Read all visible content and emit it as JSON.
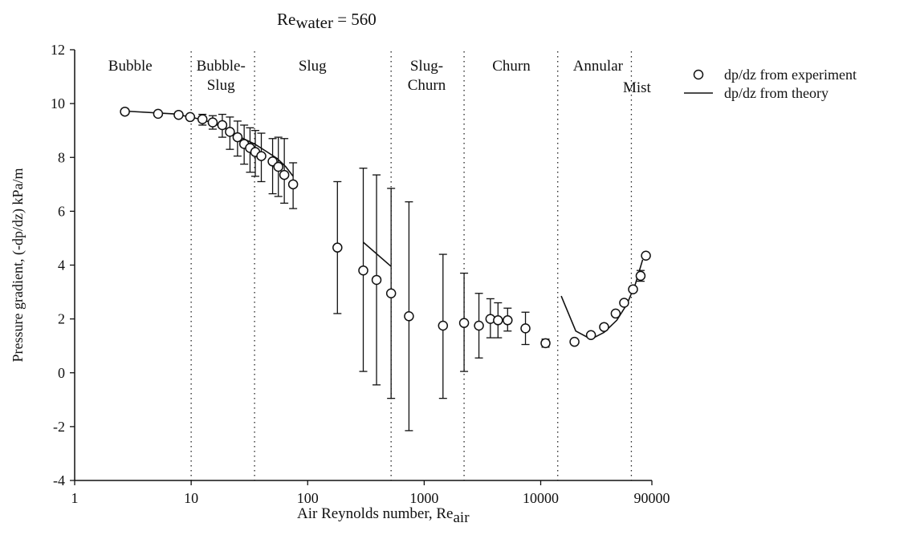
{
  "chart_data": {
    "type": "scatter",
    "title": {
      "main": "Re",
      "sub": "water",
      "suffix": " = 560"
    },
    "xlabel": {
      "main": "Air Reynolds number, Re",
      "sub": "air"
    },
    "ylabel": "Pressure gradient, (-dp/dz) kPa/m",
    "x_scale": "log",
    "xlim": [
      1,
      90000
    ],
    "ylim": [
      -4,
      12
    ],
    "x_ticks": [
      {
        "value": 1,
        "label": "1"
      },
      {
        "value": 10,
        "label": "10"
      },
      {
        "value": 100,
        "label": "100"
      },
      {
        "value": 1000,
        "label": "1000"
      },
      {
        "value": 10000,
        "label": "10000"
      },
      {
        "value": 90000,
        "label": "90000"
      }
    ],
    "y_ticks": [
      {
        "value": -4,
        "label": "-4"
      },
      {
        "value": -2,
        "label": "-2"
      },
      {
        "value": 0,
        "label": "0"
      },
      {
        "value": 2,
        "label": "2"
      },
      {
        "value": 4,
        "label": "4"
      },
      {
        "value": 6,
        "label": "6"
      },
      {
        "value": 8,
        "label": "8"
      },
      {
        "value": 10,
        "label": "10"
      },
      {
        "value": 12,
        "label": "12"
      }
    ],
    "grid": false,
    "legend_position": "right",
    "regime_boundaries": [
      10,
      35,
      520,
      2200,
      14000,
      60000
    ],
    "regimes": [
      {
        "lines": [
          "Bubble"
        ],
        "x": 3
      },
      {
        "lines": [
          "Bubble-",
          "Slug"
        ],
        "x": 18
      },
      {
        "lines": [
          "Slug"
        ],
        "x": 110
      },
      {
        "lines": [
          "Slug-",
          "Churn"
        ],
        "x": 1050
      },
      {
        "lines": [
          "Churn"
        ],
        "x": 5600
      },
      {
        "lines": [
          "Annular"
        ],
        "x": 31000
      }
    ],
    "regime_extra": {
      "label": "Mist",
      "x": 67000
    },
    "series": [
      {
        "name": "dp/dz from experiment",
        "style": "open-circle",
        "x": [
          2.7,
          5.2,
          7.8,
          9.8,
          12.5,
          15.3,
          18.5,
          21.5,
          25,
          28.5,
          32,
          35.5,
          40,
          50,
          56,
          63,
          75,
          180,
          300,
          390,
          520,
          740,
          1450,
          2200,
          2950,
          3700,
          4300,
          5200,
          7400,
          11000,
          19500,
          27000,
          35000,
          44000,
          52000,
          62000,
          72000
        ],
        "y": [
          9.7,
          9.62,
          9.58,
          9.5,
          9.42,
          9.3,
          9.2,
          8.95,
          8.75,
          8.5,
          8.35,
          8.2,
          8.05,
          7.85,
          7.65,
          7.35,
          7.0,
          4.65,
          3.8,
          3.45,
          2.95,
          2.1,
          1.75,
          1.85,
          1.75,
          2.0,
          1.95,
          1.95,
          1.65,
          1.1,
          1.15,
          1.4,
          1.7,
          2.2,
          2.6,
          3.1,
          3.6
        ]
      },
      {
        "name": "dp/dz from theory",
        "style": "line",
        "segments": [
          {
            "x": [
              2.7,
              7,
              10,
              15,
              20,
              28,
              35,
              45,
              55,
              65,
              75
            ],
            "y": [
              9.72,
              9.62,
              9.5,
              9.3,
              9.05,
              8.7,
              8.5,
              8.2,
              7.95,
              7.65,
              7.3
            ]
          },
          {
            "x": [
              300,
              520
            ],
            "y": [
              4.85,
              3.95
            ]
          },
          {
            "x": [
              15000,
              20000,
              27000,
              35000,
              45000,
              55000,
              65000,
              75000
            ],
            "y": [
              2.85,
              1.55,
              1.25,
              1.5,
              1.95,
              2.55,
              3.3,
              4.2
            ]
          }
        ]
      }
    ],
    "error_bars": [
      {
        "x": 12.5,
        "low": 9.2,
        "high": 9.6
      },
      {
        "x": 15.3,
        "low": 9.05,
        "high": 9.55
      },
      {
        "x": 18.5,
        "low": 8.75,
        "high": 9.6
      },
      {
        "x": 21.5,
        "low": 8.3,
        "high": 9.5
      },
      {
        "x": 25,
        "low": 8.05,
        "high": 9.35
      },
      {
        "x": 28.5,
        "low": 7.75,
        "high": 9.2
      },
      {
        "x": 32,
        "low": 7.45,
        "high": 9.1
      },
      {
        "x": 35.5,
        "low": 7.3,
        "high": 9.0
      },
      {
        "x": 40,
        "low": 7.1,
        "high": 8.9
      },
      {
        "x": 50,
        "low": 6.65,
        "high": 8.7
      },
      {
        "x": 56,
        "low": 6.55,
        "high": 8.75
      },
      {
        "x": 63,
        "low": 6.3,
        "high": 8.7
      },
      {
        "x": 75,
        "low": 6.1,
        "high": 7.8
      },
      {
        "x": 180,
        "low": 2.2,
        "high": 7.1
      },
      {
        "x": 300,
        "low": 0.05,
        "high": 7.6
      },
      {
        "x": 390,
        "low": -0.45,
        "high": 7.35
      },
      {
        "x": 520,
        "low": -0.95,
        "high": 6.85
      },
      {
        "x": 740,
        "low": -2.15,
        "high": 6.35
      },
      {
        "x": 1450,
        "low": -0.95,
        "high": 4.4
      },
      {
        "x": 2200,
        "low": 0.05,
        "high": 3.7
      },
      {
        "x": 2950,
        "low": 0.55,
        "high": 2.95
      },
      {
        "x": 3700,
        "low": 1.3,
        "high": 2.75
      },
      {
        "x": 4300,
        "low": 1.3,
        "high": 2.6
      },
      {
        "x": 5200,
        "low": 1.55,
        "high": 2.4
      },
      {
        "x": 7400,
        "low": 1.05,
        "high": 2.25
      },
      {
        "x": 11000,
        "low": 0.95,
        "high": 1.25
      },
      {
        "x": 72000,
        "low": 3.4,
        "high": 3.8
      }
    ],
    "extra_points": [
      {
        "x": 80000,
        "y": 4.35
      }
    ],
    "legend": [
      {
        "marker": "open-circle",
        "label": "dp/dz from experiment"
      },
      {
        "marker": "line",
        "label": "dp/dz from theory"
      }
    ]
  }
}
